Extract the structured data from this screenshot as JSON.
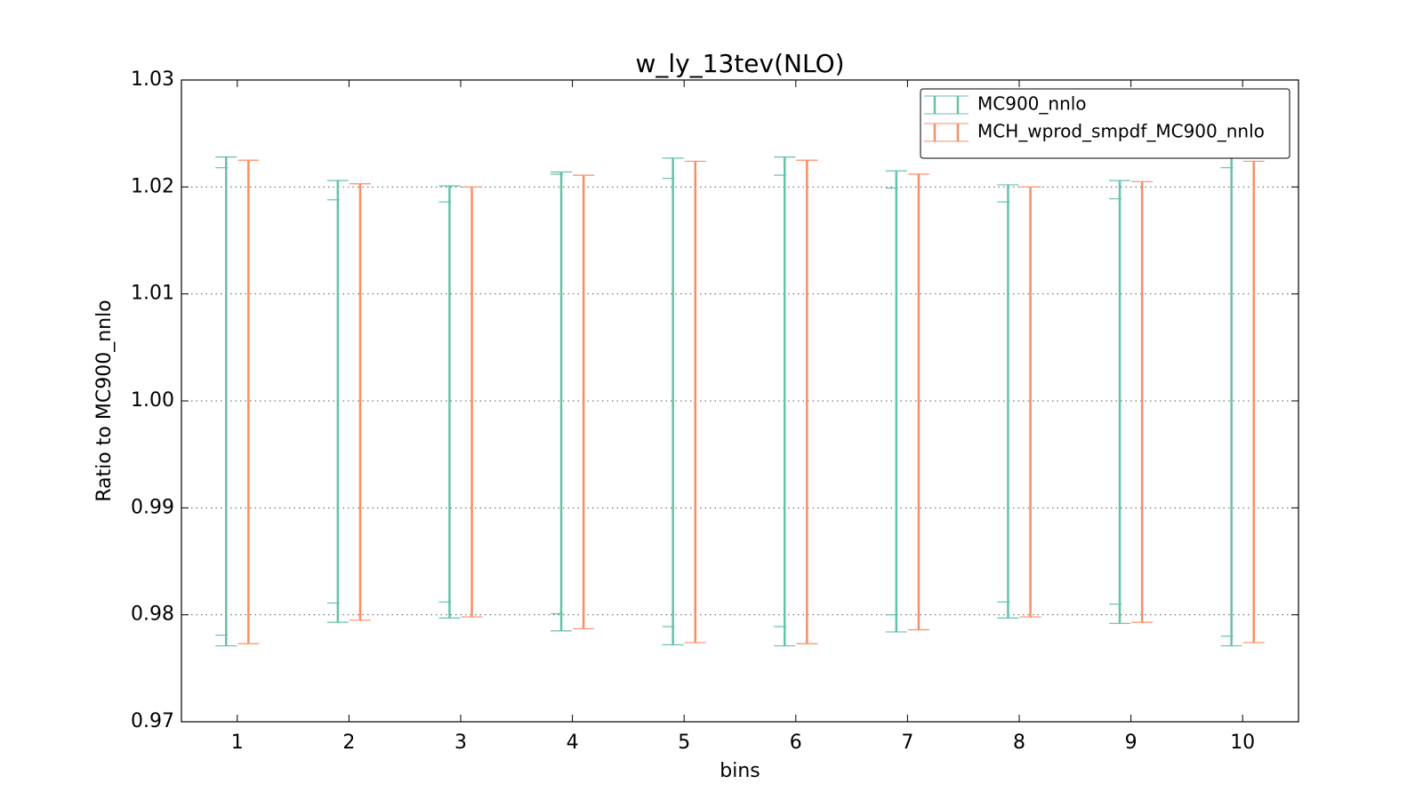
{
  "chart_data": {
    "type": "errorbar",
    "title": "w_ly_13tev(NLO)",
    "x_label": "bins",
    "y_label": "Ratio to MC900_nnlo",
    "x": [
      1,
      2,
      3,
      4,
      5,
      6,
      7,
      8,
      9,
      10
    ],
    "xlim": [
      0.5,
      10.5
    ],
    "xticks": [
      1,
      2,
      3,
      4,
      5,
      6,
      7,
      8,
      9,
      10
    ],
    "ylim": [
      0.97,
      1.03
    ],
    "yticks": [
      {
        "value": 0.97,
        "label": "0.97"
      },
      {
        "value": 0.98,
        "label": "0.98"
      },
      {
        "value": 0.99,
        "label": "0.99"
      },
      {
        "value": 1.0,
        "label": "1.00"
      },
      {
        "value": 1.01,
        "label": "1.01"
      },
      {
        "value": 1.02,
        "label": "1.02"
      },
      {
        "value": 1.03,
        "label": "1.03"
      }
    ],
    "grid": true,
    "legend": "upper right",
    "series": [
      {
        "name": "MC900_nnlo",
        "color": "#66c2a5",
        "high": [
          1.0228,
          1.0206,
          1.0201,
          1.0214,
          1.0227,
          1.0228,
          1.0215,
          1.0202,
          1.0206,
          1.0228
        ],
        "low": [
          0.9771,
          0.9793,
          0.9797,
          0.9785,
          0.9772,
          0.9771,
          0.9784,
          0.9797,
          0.9792,
          0.9771
        ],
        "inner_high": [
          1.0218,
          1.0188,
          1.0186,
          1.0212,
          1.0208,
          1.0211,
          1.0199,
          1.0186,
          1.0189,
          1.0218
        ],
        "inner_low": [
          0.9781,
          0.9811,
          0.9812,
          0.9801,
          0.9789,
          0.9789,
          0.98,
          0.9812,
          0.981,
          0.978
        ]
      },
      {
        "name": "MCH_wprod_smpdf_MC900_nnlo",
        "color": "#fc8d62",
        "high": [
          1.0225,
          1.0203,
          1.02,
          1.0211,
          1.0224,
          1.0225,
          1.0212,
          1.02,
          1.0205,
          1.0224
        ],
        "low": [
          0.9773,
          0.9795,
          0.9798,
          0.9787,
          0.9774,
          0.9773,
          0.9786,
          0.9798,
          0.9793,
          0.9774
        ]
      }
    ]
  }
}
